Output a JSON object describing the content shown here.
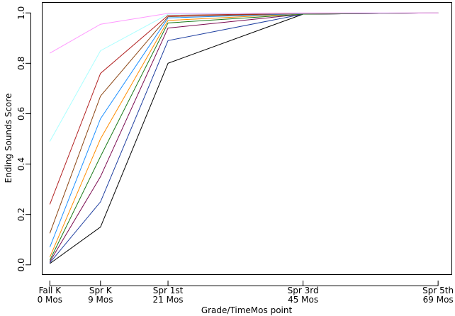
{
  "chart_data": {
    "type": "line",
    "title": "",
    "xlabel": "Grade/TimeMos point",
    "ylabel": "Ending Sounds Score",
    "x": [
      0,
      9,
      21,
      45,
      69
    ],
    "x_tick_labels": [
      [
        "Fall K",
        "0 Mos"
      ],
      [
        "Spr K",
        "9 Mos"
      ],
      [
        "Spr 1st",
        "21 Mos"
      ],
      [
        "Spr 3rd",
        "45 Mos"
      ],
      [
        "Spr 5th",
        "69 Mos"
      ]
    ],
    "xlim": [
      -1.3,
      71.5
    ],
    "ylim": [
      -0.04,
      1.04
    ],
    "y_ticks": [
      0.0,
      0.2,
      0.4,
      0.6,
      0.8,
      1.0
    ],
    "y_tick_labels": [
      "0.0",
      "0.2",
      "0.4",
      "0.6",
      "0.8",
      "1.0"
    ],
    "grid": false,
    "legend": "none",
    "series": [
      {
        "color": "#000000",
        "values": [
          0.005,
          0.15,
          0.8,
          0.995,
          1.0
        ]
      },
      {
        "color": "#1f3fa0",
        "values": [
          0.008,
          0.25,
          0.89,
          0.995,
          1.0
        ]
      },
      {
        "color": "#7a0a50",
        "values": [
          0.012,
          0.35,
          0.94,
          0.995,
          1.0
        ]
      },
      {
        "color": "#1a7a1a",
        "values": [
          0.018,
          0.43,
          0.96,
          0.995,
          1.0
        ]
      },
      {
        "color": "#ff8c00",
        "values": [
          0.03,
          0.5,
          0.97,
          0.997,
          1.0
        ]
      },
      {
        "color": "#1e90ff",
        "values": [
          0.07,
          0.58,
          0.98,
          0.997,
          1.0
        ]
      },
      {
        "color": "#8b4513",
        "values": [
          0.125,
          0.67,
          0.985,
          0.998,
          1.0
        ]
      },
      {
        "color": "#b22222",
        "values": [
          0.24,
          0.76,
          0.99,
          0.998,
          1.0
        ]
      },
      {
        "color": "#aaffff",
        "values": [
          0.49,
          0.85,
          0.995,
          0.999,
          1.0
        ]
      },
      {
        "color": "#ff99ff",
        "values": [
          0.84,
          0.955,
          0.998,
          1.0,
          1.0
        ]
      }
    ]
  }
}
